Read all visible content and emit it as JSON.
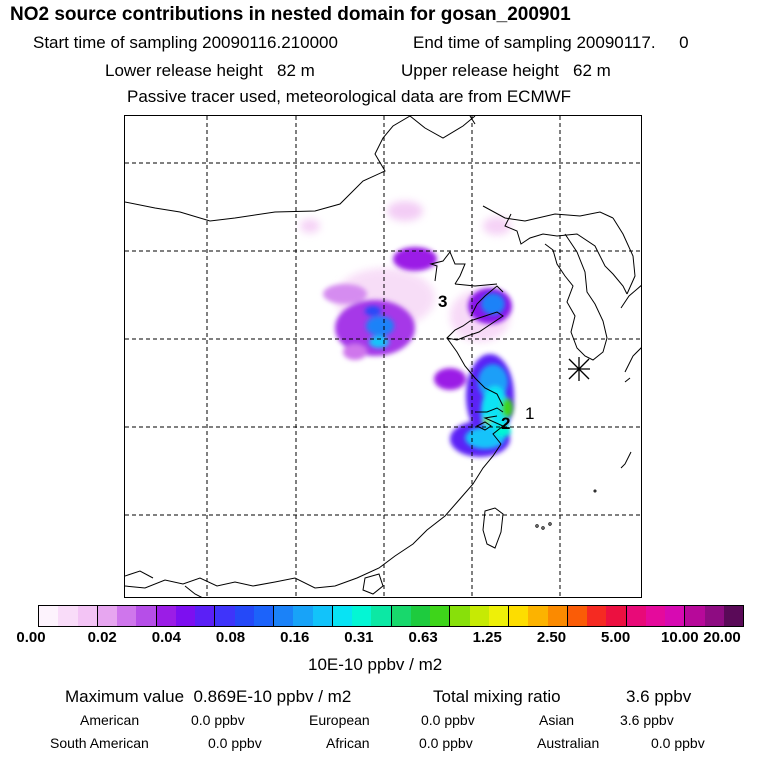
{
  "header": {
    "title": "NO2 source contributions in nested domain for gosan_200901",
    "start_label": "Start time of sampling 20090116.210000",
    "end_label": "End time of sampling 20090117.     0",
    "lower_height": "Lower release height   82 m",
    "upper_height": "Upper release height   62 m",
    "tracer_note": "Passive tracer used, meteorological data are from ECMWF"
  },
  "map": {
    "labels": [
      "3",
      "2",
      "1"
    ],
    "receptor_icon": "star-marker-icon"
  },
  "colorbar": {
    "colors": [
      "#fdf3fd",
      "#f9dcf9",
      "#f3c4f5",
      "#e7a6f0",
      "#cf76ec",
      "#b64ee8",
      "#9b1de6",
      "#7d0ff0",
      "#5b20f6",
      "#3f34fa",
      "#2549f8",
      "#1c63fa",
      "#1b82f8",
      "#18a3f8",
      "#12c3fa",
      "#08e3f4",
      "#04f6d4",
      "#0ce8a4",
      "#18d86c",
      "#1ecb3e",
      "#3ed51a",
      "#88e00a",
      "#c6ea04",
      "#eef008",
      "#fddd00",
      "#fcb300",
      "#fb8a00",
      "#fa5c07",
      "#f52a22",
      "#ec1040",
      "#e80a78",
      "#e50a9c",
      "#d70ab2",
      "#b7099a",
      "#8e0c82",
      "#5a0a58"
    ],
    "tick_labels": [
      "0.00",
      "0.02",
      "0.04",
      "0.08",
      "0.16",
      "0.31",
      "0.63",
      "1.25",
      "2.50",
      "5.00",
      "10.00",
      "20.00"
    ],
    "unit": "10E-10 ppbv / m2"
  },
  "summary": {
    "max_value": "Maximum value  0.869E-10 ppbv / m2",
    "total_mixing": "Total mixing ratio",
    "total_value": "3.6 ppbv",
    "regions": [
      {
        "name": "American",
        "value": "0.0 ppbv"
      },
      {
        "name": "European",
        "value": "0.0 ppbv"
      },
      {
        "name": "Asian",
        "value": "3.6 ppbv"
      },
      {
        "name": "South American",
        "value": "0.0 ppbv"
      },
      {
        "name": "African",
        "value": "0.0 ppbv"
      },
      {
        "name": "Australian",
        "value": "0.0 ppbv"
      }
    ]
  }
}
